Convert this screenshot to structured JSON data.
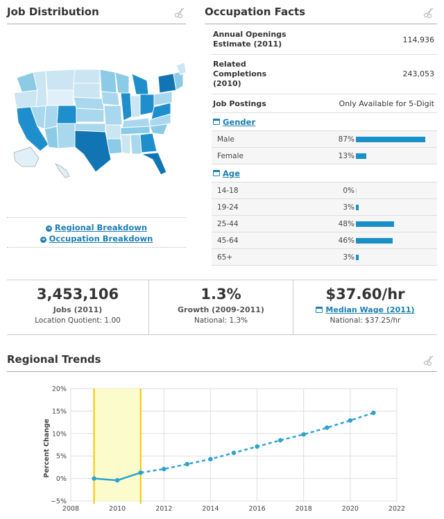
{
  "job_distribution": {
    "title": "Job Distribution",
    "links": [
      "Regional Breakdown",
      "Occupation Breakdown"
    ]
  },
  "occupation_facts": {
    "title": "Occupation Facts",
    "facts": [
      {
        "label": "Annual Openings Estimate (2011)",
        "value": "114,936"
      },
      {
        "label": "Related Completions (2010)",
        "value": "243,053"
      },
      {
        "label": "Job Postings",
        "value": "Only Available for 5-Digit"
      }
    ],
    "gender": {
      "heading": "Gender",
      "rows": [
        {
          "label": "Male",
          "pct": "87%",
          "value": 87
        },
        {
          "label": "Female",
          "pct": "13%",
          "value": 13
        }
      ]
    },
    "age": {
      "heading": "Age",
      "rows": [
        {
          "label": "14-18",
          "pct": "0%",
          "value": 0
        },
        {
          "label": "19-24",
          "pct": "3%",
          "value": 3
        },
        {
          "label": "25-44",
          "pct": "48%",
          "value": 48
        },
        {
          "label": "45-64",
          "pct": "46%",
          "value": 46
        },
        {
          "label": "65+",
          "pct": "3%",
          "value": 3
        }
      ]
    }
  },
  "summary": [
    {
      "big": "3,453,106",
      "caption": "Jobs (2011)",
      "sub": "Location Quotient: 1.00"
    },
    {
      "big": "1.3%",
      "caption": "Growth (2009-2011)",
      "sub": "National: 1.3%"
    },
    {
      "big": "$37.60/hr",
      "caption": "Median Wage (2011)",
      "sub": "National: $37.25/hr"
    }
  ],
  "regional_trends": {
    "title": "Regional Trends",
    "chart_data": {
      "type": "line",
      "ylabel": "Percent Change",
      "xlabel": "",
      "xlim": [
        2008,
        2022
      ],
      "ylim": [
        -5,
        20
      ],
      "x_ticks": [
        "2008",
        "2010",
        "2012",
        "2014",
        "2016",
        "2018",
        "2020",
        "2022"
      ],
      "y_ticks": [
        "20%",
        "15%",
        "10%",
        "5%",
        "0%",
        "−5%"
      ],
      "highlight_range": [
        2009,
        2011
      ],
      "grid": true,
      "series": [
        {
          "style": "solid",
          "x": [
            2009,
            2010,
            2011
          ],
          "y": [
            0.0,
            -0.4,
            1.3
          ]
        },
        {
          "style": "dashed",
          "x": [
            2011,
            2012,
            2013,
            2014,
            2015,
            2016,
            2017,
            2018,
            2019,
            2020,
            2021
          ],
          "y": [
            1.3,
            2.1,
            3.2,
            4.3,
            5.7,
            7.1,
            8.5,
            9.8,
            11.3,
            12.9,
            14.6
          ]
        }
      ]
    }
  },
  "colors": {
    "accent": "#1a7eb0",
    "bar": "#1a90c8",
    "highlight": "#fbfbcc",
    "highlight_border": "#f5c400"
  }
}
